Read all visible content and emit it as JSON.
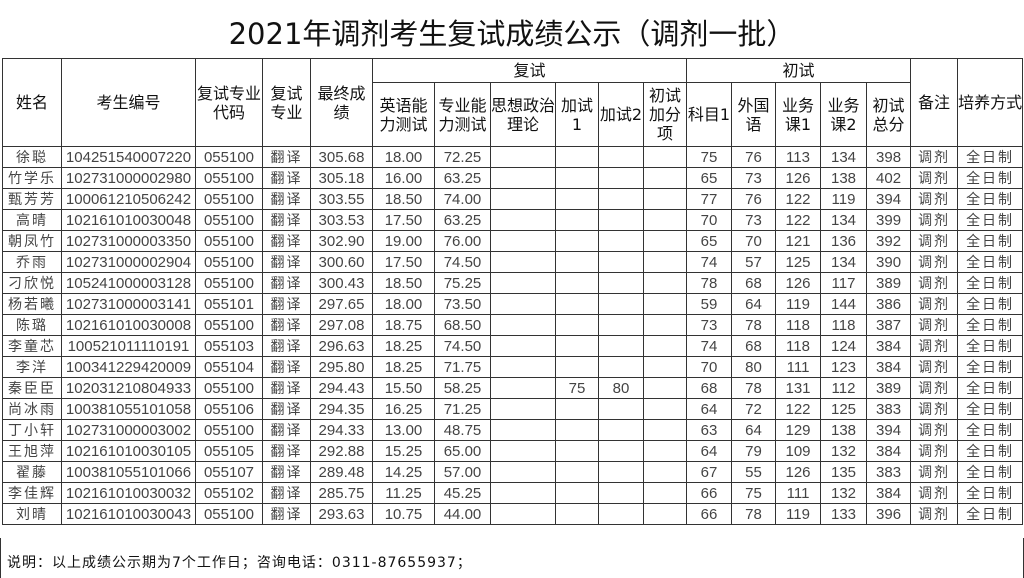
{
  "title": "2021年调剂考生复试成绩公示（调剂一批）",
  "headers": {
    "name": "姓名",
    "id": "考生编号",
    "major_code": "复试专业代码",
    "major": "复试专业",
    "final": "最终成绩",
    "retest_group": "复试",
    "english": "英语能力测试",
    "professional": "专业能力测试",
    "politics": "思想政治理论",
    "extra1": "加试1",
    "extra2": "加试2",
    "prelim_group": "初试",
    "prelim_bonus": "初试加分项",
    "subject1": "科目1",
    "foreign": "外国语",
    "course1": "业务课1",
    "course2": "业务课2",
    "prelim_total": "初试总分",
    "remark": "备注",
    "mode": "培养方式"
  },
  "rows": [
    [
      "徐聪",
      "104251540007220",
      "055100",
      "翻译",
      "305.68",
      "18.00",
      "72.25",
      "",
      "",
      "",
      "",
      "75",
      "76",
      "113",
      "134",
      "398",
      "调剂",
      "全日制"
    ],
    [
      "竹学乐",
      "102731000002980",
      "055100",
      "翻译",
      "305.18",
      "16.00",
      "63.25",
      "",
      "",
      "",
      "",
      "65",
      "73",
      "126",
      "138",
      "402",
      "调剂",
      "全日制"
    ],
    [
      "甄芳芳",
      "100061210506242",
      "055100",
      "翻译",
      "303.55",
      "18.50",
      "74.00",
      "",
      "",
      "",
      "",
      "77",
      "76",
      "122",
      "119",
      "394",
      "调剂",
      "全日制"
    ],
    [
      "高晴",
      "102161010030048",
      "055100",
      "翻译",
      "303.53",
      "17.50",
      "63.25",
      "",
      "",
      "",
      "",
      "70",
      "73",
      "122",
      "134",
      "399",
      "调剂",
      "全日制"
    ],
    [
      "朝凤竹",
      "102731000003350",
      "055100",
      "翻译",
      "302.90",
      "19.00",
      "76.00",
      "",
      "",
      "",
      "",
      "65",
      "70",
      "121",
      "136",
      "392",
      "调剂",
      "全日制"
    ],
    [
      "乔雨",
      "102731000002904",
      "055100",
      "翻译",
      "300.60",
      "17.50",
      "74.50",
      "",
      "",
      "",
      "",
      "74",
      "57",
      "125",
      "134",
      "390",
      "调剂",
      "全日制"
    ],
    [
      "刁欣悦",
      "105241000003128",
      "055100",
      "翻译",
      "300.43",
      "18.50",
      "75.25",
      "",
      "",
      "",
      "",
      "78",
      "68",
      "126",
      "117",
      "389",
      "调剂",
      "全日制"
    ],
    [
      "杨若曦",
      "102731000003141",
      "055101",
      "翻译",
      "297.65",
      "18.00",
      "73.50",
      "",
      "",
      "",
      "",
      "59",
      "64",
      "119",
      "144",
      "386",
      "调剂",
      "全日制"
    ],
    [
      "陈璐",
      "102161010030008",
      "055100",
      "翻译",
      "297.08",
      "18.75",
      "68.50",
      "",
      "",
      "",
      "",
      "73",
      "78",
      "118",
      "118",
      "387",
      "调剂",
      "全日制"
    ],
    [
      "李童芯",
      "100521011110191",
      "055103",
      "翻译",
      "296.63",
      "18.25",
      "74.50",
      "",
      "",
      "",
      "",
      "74",
      "68",
      "118",
      "124",
      "384",
      "调剂",
      "全日制"
    ],
    [
      "李洋",
      "100341229420009",
      "055104",
      "翻译",
      "295.80",
      "18.25",
      "71.75",
      "",
      "",
      "",
      "",
      "70",
      "80",
      "111",
      "123",
      "384",
      "调剂",
      "全日制"
    ],
    [
      "秦臣臣",
      "102031210804933",
      "055100",
      "翻译",
      "294.43",
      "15.50",
      "58.25",
      "",
      "75",
      "80",
      "",
      "68",
      "78",
      "131",
      "112",
      "389",
      "调剂",
      "全日制"
    ],
    [
      "尚冰雨",
      "100381055101058",
      "055106",
      "翻译",
      "294.35",
      "16.25",
      "71.25",
      "",
      "",
      "",
      "",
      "64",
      "72",
      "122",
      "125",
      "383",
      "调剂",
      "全日制"
    ],
    [
      "丁小轩",
      "102731000003002",
      "055100",
      "翻译",
      "294.33",
      "13.00",
      "48.75",
      "",
      "",
      "",
      "",
      "63",
      "64",
      "129",
      "138",
      "394",
      "调剂",
      "全日制"
    ],
    [
      "王旭萍",
      "102161010030105",
      "055105",
      "翻译",
      "292.88",
      "15.25",
      "65.00",
      "",
      "",
      "",
      "",
      "64",
      "79",
      "109",
      "132",
      "384",
      "调剂",
      "全日制"
    ],
    [
      "翟藤",
      "100381055101066",
      "055107",
      "翻译",
      "289.48",
      "14.25",
      "57.00",
      "",
      "",
      "",
      "",
      "67",
      "55",
      "126",
      "135",
      "383",
      "调剂",
      "全日制"
    ],
    [
      "李佳辉",
      "102161010030032",
      "055102",
      "翻译",
      "285.75",
      "11.25",
      "45.25",
      "",
      "",
      "",
      "",
      "66",
      "75",
      "111",
      "132",
      "384",
      "调剂",
      "全日制"
    ],
    [
      "刘晴",
      "102161010030043",
      "055100",
      "翻译",
      "293.63",
      "10.75",
      "44.00",
      "",
      "",
      "",
      "",
      "66",
      "78",
      "119",
      "133",
      "396",
      "调剂",
      "全日制"
    ]
  ],
  "footer": "说明：以上成绩公示期为7个工作日；咨询电话：0311-87655937；"
}
